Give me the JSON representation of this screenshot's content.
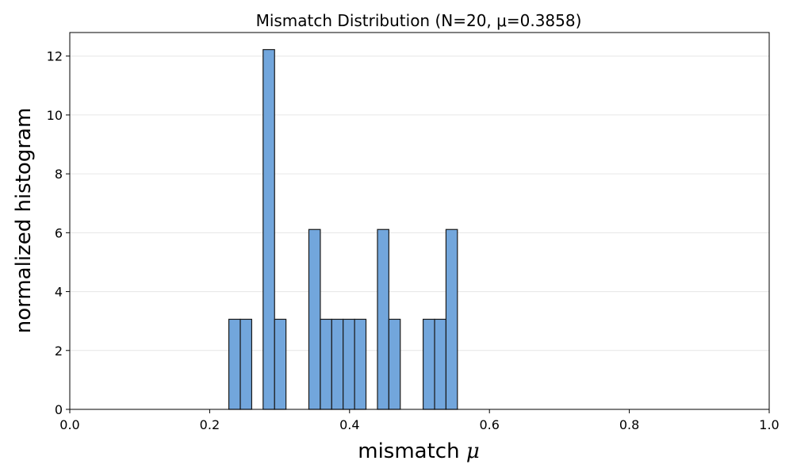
{
  "chart_data": {
    "type": "bar",
    "title": "Mismatch Distribution (N=20, μ=0.3858)",
    "xlabel_text": "mismatch",
    "xlabel_symbol": "μ",
    "ylabel": "normalized histogram",
    "xlim": [
      0.0,
      1.0
    ],
    "ylim": [
      0,
      12.8
    ],
    "xticks": [
      0.0,
      0.2,
      0.4,
      0.6,
      0.8,
      1.0
    ],
    "xtick_labels": [
      "0.0",
      "0.2",
      "0.4",
      "0.6",
      "0.8",
      "1.0"
    ],
    "yticks": [
      0,
      2,
      4,
      6,
      8,
      10,
      12
    ],
    "ytick_labels": [
      "0",
      "2",
      "4",
      "6",
      "8",
      "10",
      "12"
    ],
    "grid": "y",
    "legend": "none",
    "bar_color": "#72a6dc",
    "edge_color": "#1a1a1a",
    "bins": [
      {
        "x0": 0.2274,
        "x1": 0.2438,
        "value": 3.06
      },
      {
        "x0": 0.2438,
        "x1": 0.2601,
        "value": 3.06
      },
      {
        "x0": 0.2764,
        "x1": 0.2928,
        "value": 12.22
      },
      {
        "x0": 0.2928,
        "x1": 0.3091,
        "value": 3.06
      },
      {
        "x0": 0.3418,
        "x1": 0.3582,
        "value": 6.11
      },
      {
        "x0": 0.3582,
        "x1": 0.3745,
        "value": 3.06
      },
      {
        "x0": 0.3745,
        "x1": 0.3908,
        "value": 3.06
      },
      {
        "x0": 0.3908,
        "x1": 0.4072,
        "value": 3.06
      },
      {
        "x0": 0.4072,
        "x1": 0.4235,
        "value": 3.06
      },
      {
        "x0": 0.4399,
        "x1": 0.4562,
        "value": 6.11
      },
      {
        "x0": 0.4562,
        "x1": 0.4725,
        "value": 3.06
      },
      {
        "x0": 0.5052,
        "x1": 0.5216,
        "value": 3.06
      },
      {
        "x0": 0.5216,
        "x1": 0.5379,
        "value": 3.06
      },
      {
        "x0": 0.5379,
        "x1": 0.5542,
        "value": 6.11
      }
    ]
  }
}
